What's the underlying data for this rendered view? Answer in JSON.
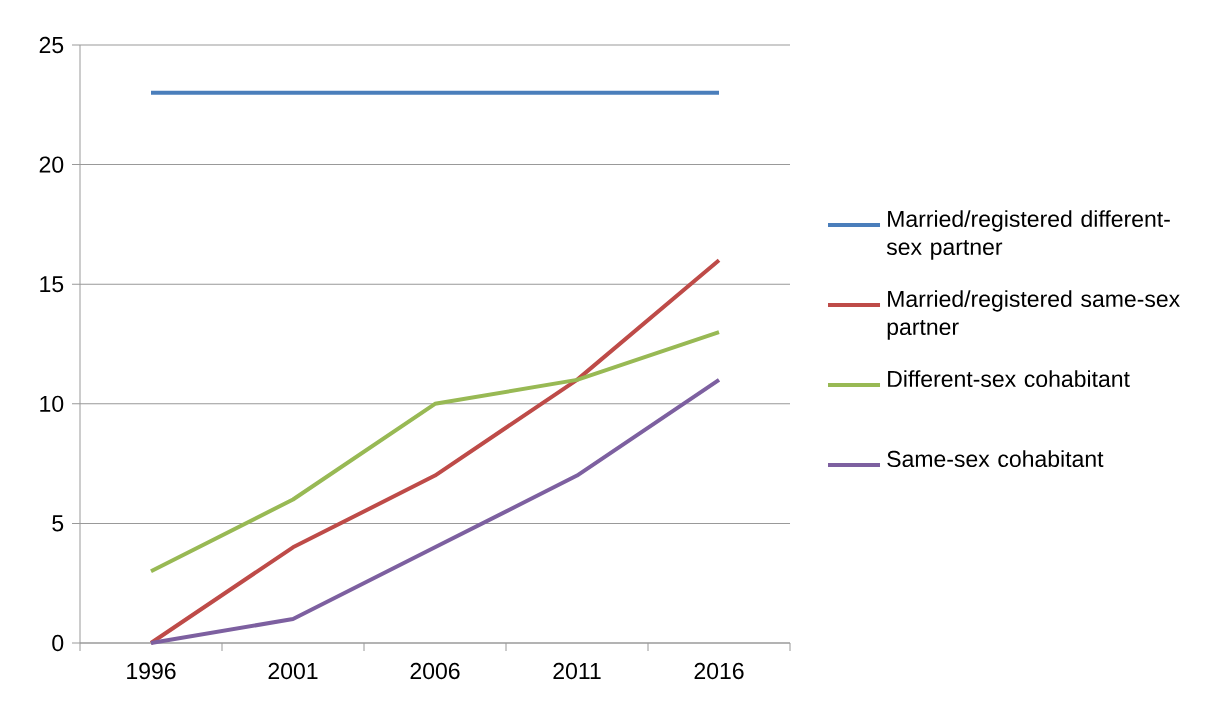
{
  "chart_data": {
    "type": "line",
    "categories": [
      "1996",
      "2001",
      "2006",
      "2011",
      "2016"
    ],
    "series": [
      {
        "name": "Married/registered different-sex partner",
        "color": "#4a7ebb",
        "values": [
          23,
          23,
          23,
          23,
          23
        ]
      },
      {
        "name": "Married/registered same-sex partner",
        "color": "#be4b48",
        "values": [
          0,
          4,
          7,
          11,
          16
        ]
      },
      {
        "name": "Different-sex cohabitant",
        "color": "#98b954",
        "values": [
          3,
          6,
          10,
          11,
          13
        ]
      },
      {
        "name": "Same-sex cohabitant",
        "color": "#7d60a0",
        "values": [
          0,
          1,
          4,
          7,
          11
        ]
      }
    ],
    "ylim": [
      0,
      25
    ],
    "yticks": [
      0,
      5,
      10,
      15,
      20,
      25
    ],
    "grid": "y",
    "legend": "right",
    "line_style": "solid",
    "marker": "none"
  }
}
